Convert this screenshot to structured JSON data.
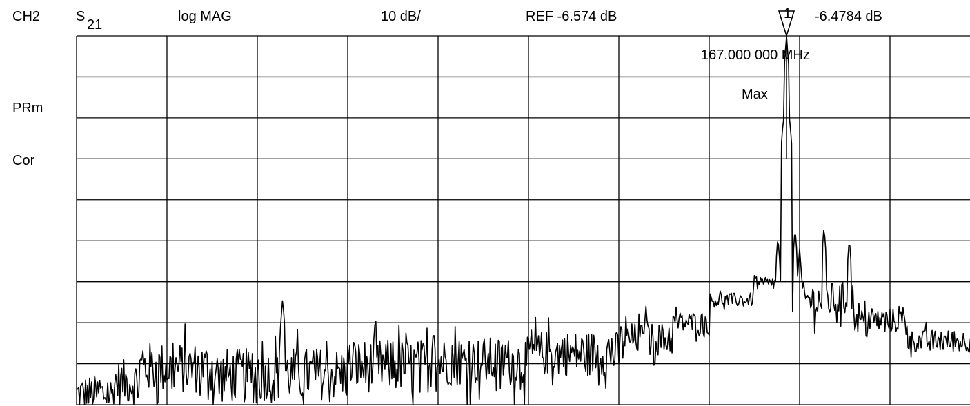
{
  "header": {
    "channel": "CH2",
    "param_letter": "S",
    "param_sub": "21",
    "format": "log MAG",
    "scale": "10 dB/",
    "reference": "REF -6.574 dB",
    "marker_value": "-6.4784 dB",
    "marker_number": "1"
  },
  "side_labels": {
    "prm": "PRm",
    "cor": "Cor"
  },
  "marker": {
    "frequency_label": "167.000 000 MHz",
    "search_label": "Max"
  },
  "chart_data": {
    "type": "line",
    "title": "",
    "xlabel": "",
    "ylabel": "",
    "ylim_divisions": [
      0,
      9
    ],
    "reference_division": 0,
    "grid": true,
    "grid_divisions": {
      "x": 10,
      "y": 9
    },
    "stroke_color": "#000000",
    "series": [
      {
        "segments": [
          {
            "from": 0.0,
            "to": 0.4,
            "level": 0.25,
            "noise": 0.95
          },
          {
            "from": 0.4,
            "to": 0.7,
            "level": 0.55,
            "noise": 1.1
          },
          {
            "from": 0.7,
            "to": 1.5,
            "level": 0.9,
            "noise": 1.25
          },
          {
            "from": 1.5,
            "to": 2.2,
            "level": 0.7,
            "noise": 1.35
          },
          {
            "from": 2.2,
            "to": 3.0,
            "level": 0.75,
            "noise": 1.3
          },
          {
            "from": 3.0,
            "to": 4.0,
            "level": 0.95,
            "noise": 1.3
          },
          {
            "from": 4.0,
            "to": 5.0,
            "level": 1.05,
            "noise": 1.2
          },
          {
            "from": 5.0,
            "to": 6.0,
            "level": 1.25,
            "noise": 1.1
          },
          {
            "from": 6.0,
            "to": 6.6,
            "level": 1.6,
            "noise": 0.8
          },
          {
            "from": 6.6,
            "to": 7.0,
            "level": 2.0,
            "noise": 0.55
          },
          {
            "from": 7.0,
            "to": 7.5,
            "level": 2.55,
            "noise": 0.35
          },
          {
            "from": 7.5,
            "to": 7.75,
            "level": 2.95,
            "noise": 0.3
          },
          {
            "from": 7.75,
            "to": 8.0,
            "level": 2.75,
            "noise": 1.0
          },
          {
            "from": 8.0,
            "to": 8.6,
            "level": 2.55,
            "noise": 0.9
          },
          {
            "from": 8.6,
            "to": 9.2,
            "level": 2.05,
            "noise": 0.6
          },
          {
            "from": 9.2,
            "to": 10.0,
            "level": 1.55,
            "noise": 0.55
          }
        ],
        "spikes": [
          {
            "x": 2.28,
            "y": 2.6
          },
          {
            "x": 3.95,
            "y": 1.85
          },
          {
            "x": 6.3,
            "y": 2.4
          },
          {
            "x": 7.5,
            "y": 3.15
          },
          {
            "x": 7.62,
            "y": 2.6
          },
          {
            "x": 7.76,
            "y": 4.1
          },
          {
            "x": 7.82,
            "y": 7.0
          },
          {
            "x": 7.855,
            "y": 9.0
          },
          {
            "x": 7.89,
            "y": 7.0
          },
          {
            "x": 7.95,
            "y": 4.3
          },
          {
            "x": 8.0,
            "y": 3.8
          },
          {
            "x": 8.08,
            "y": 2.2
          },
          {
            "x": 8.27,
            "y": 4.35
          },
          {
            "x": 8.55,
            "y": 4.05
          },
          {
            "x": 8.26,
            "y": 1.75
          }
        ]
      }
    ]
  }
}
